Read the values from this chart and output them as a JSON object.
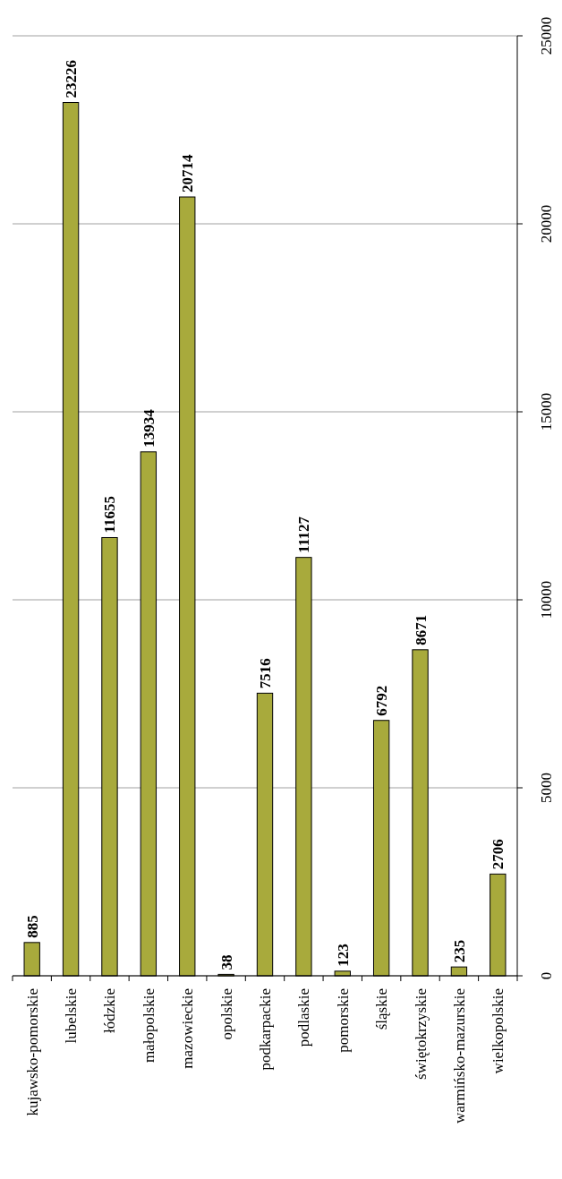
{
  "chart_data": {
    "type": "bar",
    "categories": [
      "kujawsko-pomorskie",
      "lubelskie",
      "łódzkie",
      "małopolskie",
      "mazowieckie",
      "opolskie",
      "podkarpackie",
      "podlaskie",
      "pomorskie",
      "śląskie",
      "świętokrzyskie",
      "warmińsko-mazurskie",
      "wielkopolskie"
    ],
    "values": [
      885,
      23226,
      11655,
      13934,
      20714,
      38,
      7516,
      11127,
      123,
      6792,
      8671,
      235,
      2706
    ],
    "color": "#a8aa3c",
    "ylim": [
      0,
      25000
    ],
    "yticks": [
      0,
      5000,
      10000,
      15000,
      20000,
      25000
    ],
    "grid": "y",
    "data_labels": true
  }
}
